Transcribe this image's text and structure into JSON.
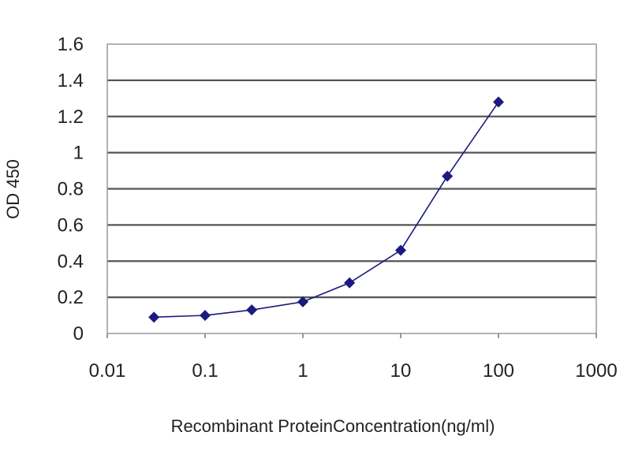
{
  "chart_data": {
    "type": "line",
    "title": "",
    "xlabel": "Recombinant ProteinConcentration(ng/ml)",
    "ylabel": "OD 450",
    "xscale": "log",
    "xlim": [
      0.01,
      1000
    ],
    "ylim": [
      0,
      1.6
    ],
    "x_ticks": [
      "0.01",
      "0.1",
      "1",
      "10",
      "100",
      "1000"
    ],
    "y_ticks": [
      "0",
      "0.2",
      "0.4",
      "0.6",
      "0.8",
      "1",
      "1.2",
      "1.4",
      "1.6"
    ],
    "grid": "horizontal",
    "legend": "none",
    "series": [
      {
        "x": [
          0.03,
          0.1,
          0.3,
          1,
          3,
          10,
          30,
          100
        ],
        "y": [
          0.09,
          0.1,
          0.13,
          0.175,
          0.28,
          0.46,
          0.87,
          1.28
        ],
        "color": "#1a1a80",
        "marker": "diamond"
      }
    ]
  }
}
